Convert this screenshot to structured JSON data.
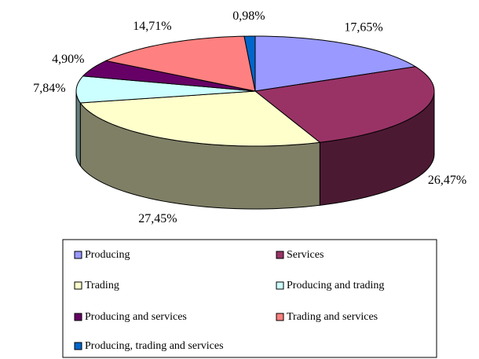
{
  "chart_data": {
    "type": "pie3d",
    "categories": [
      "Producing",
      "Services",
      "Trading",
      "Producing and trading",
      "Producing and services",
      "Trading and services",
      "Producing, trading and services"
    ],
    "values": [
      17.65,
      26.47,
      27.45,
      7.84,
      4.9,
      14.71,
      0.98
    ],
    "value_labels": [
      "17,65%",
      "26,47%",
      "27,45%",
      "7,84%",
      "4,90%",
      "14,71%",
      "0,98%"
    ],
    "colors": [
      "#9999ff",
      "#993366",
      "#ffffcc",
      "#ccffff",
      "#660066",
      "#ff8080",
      "#0066cc"
    ],
    "legend": "bottom"
  }
}
